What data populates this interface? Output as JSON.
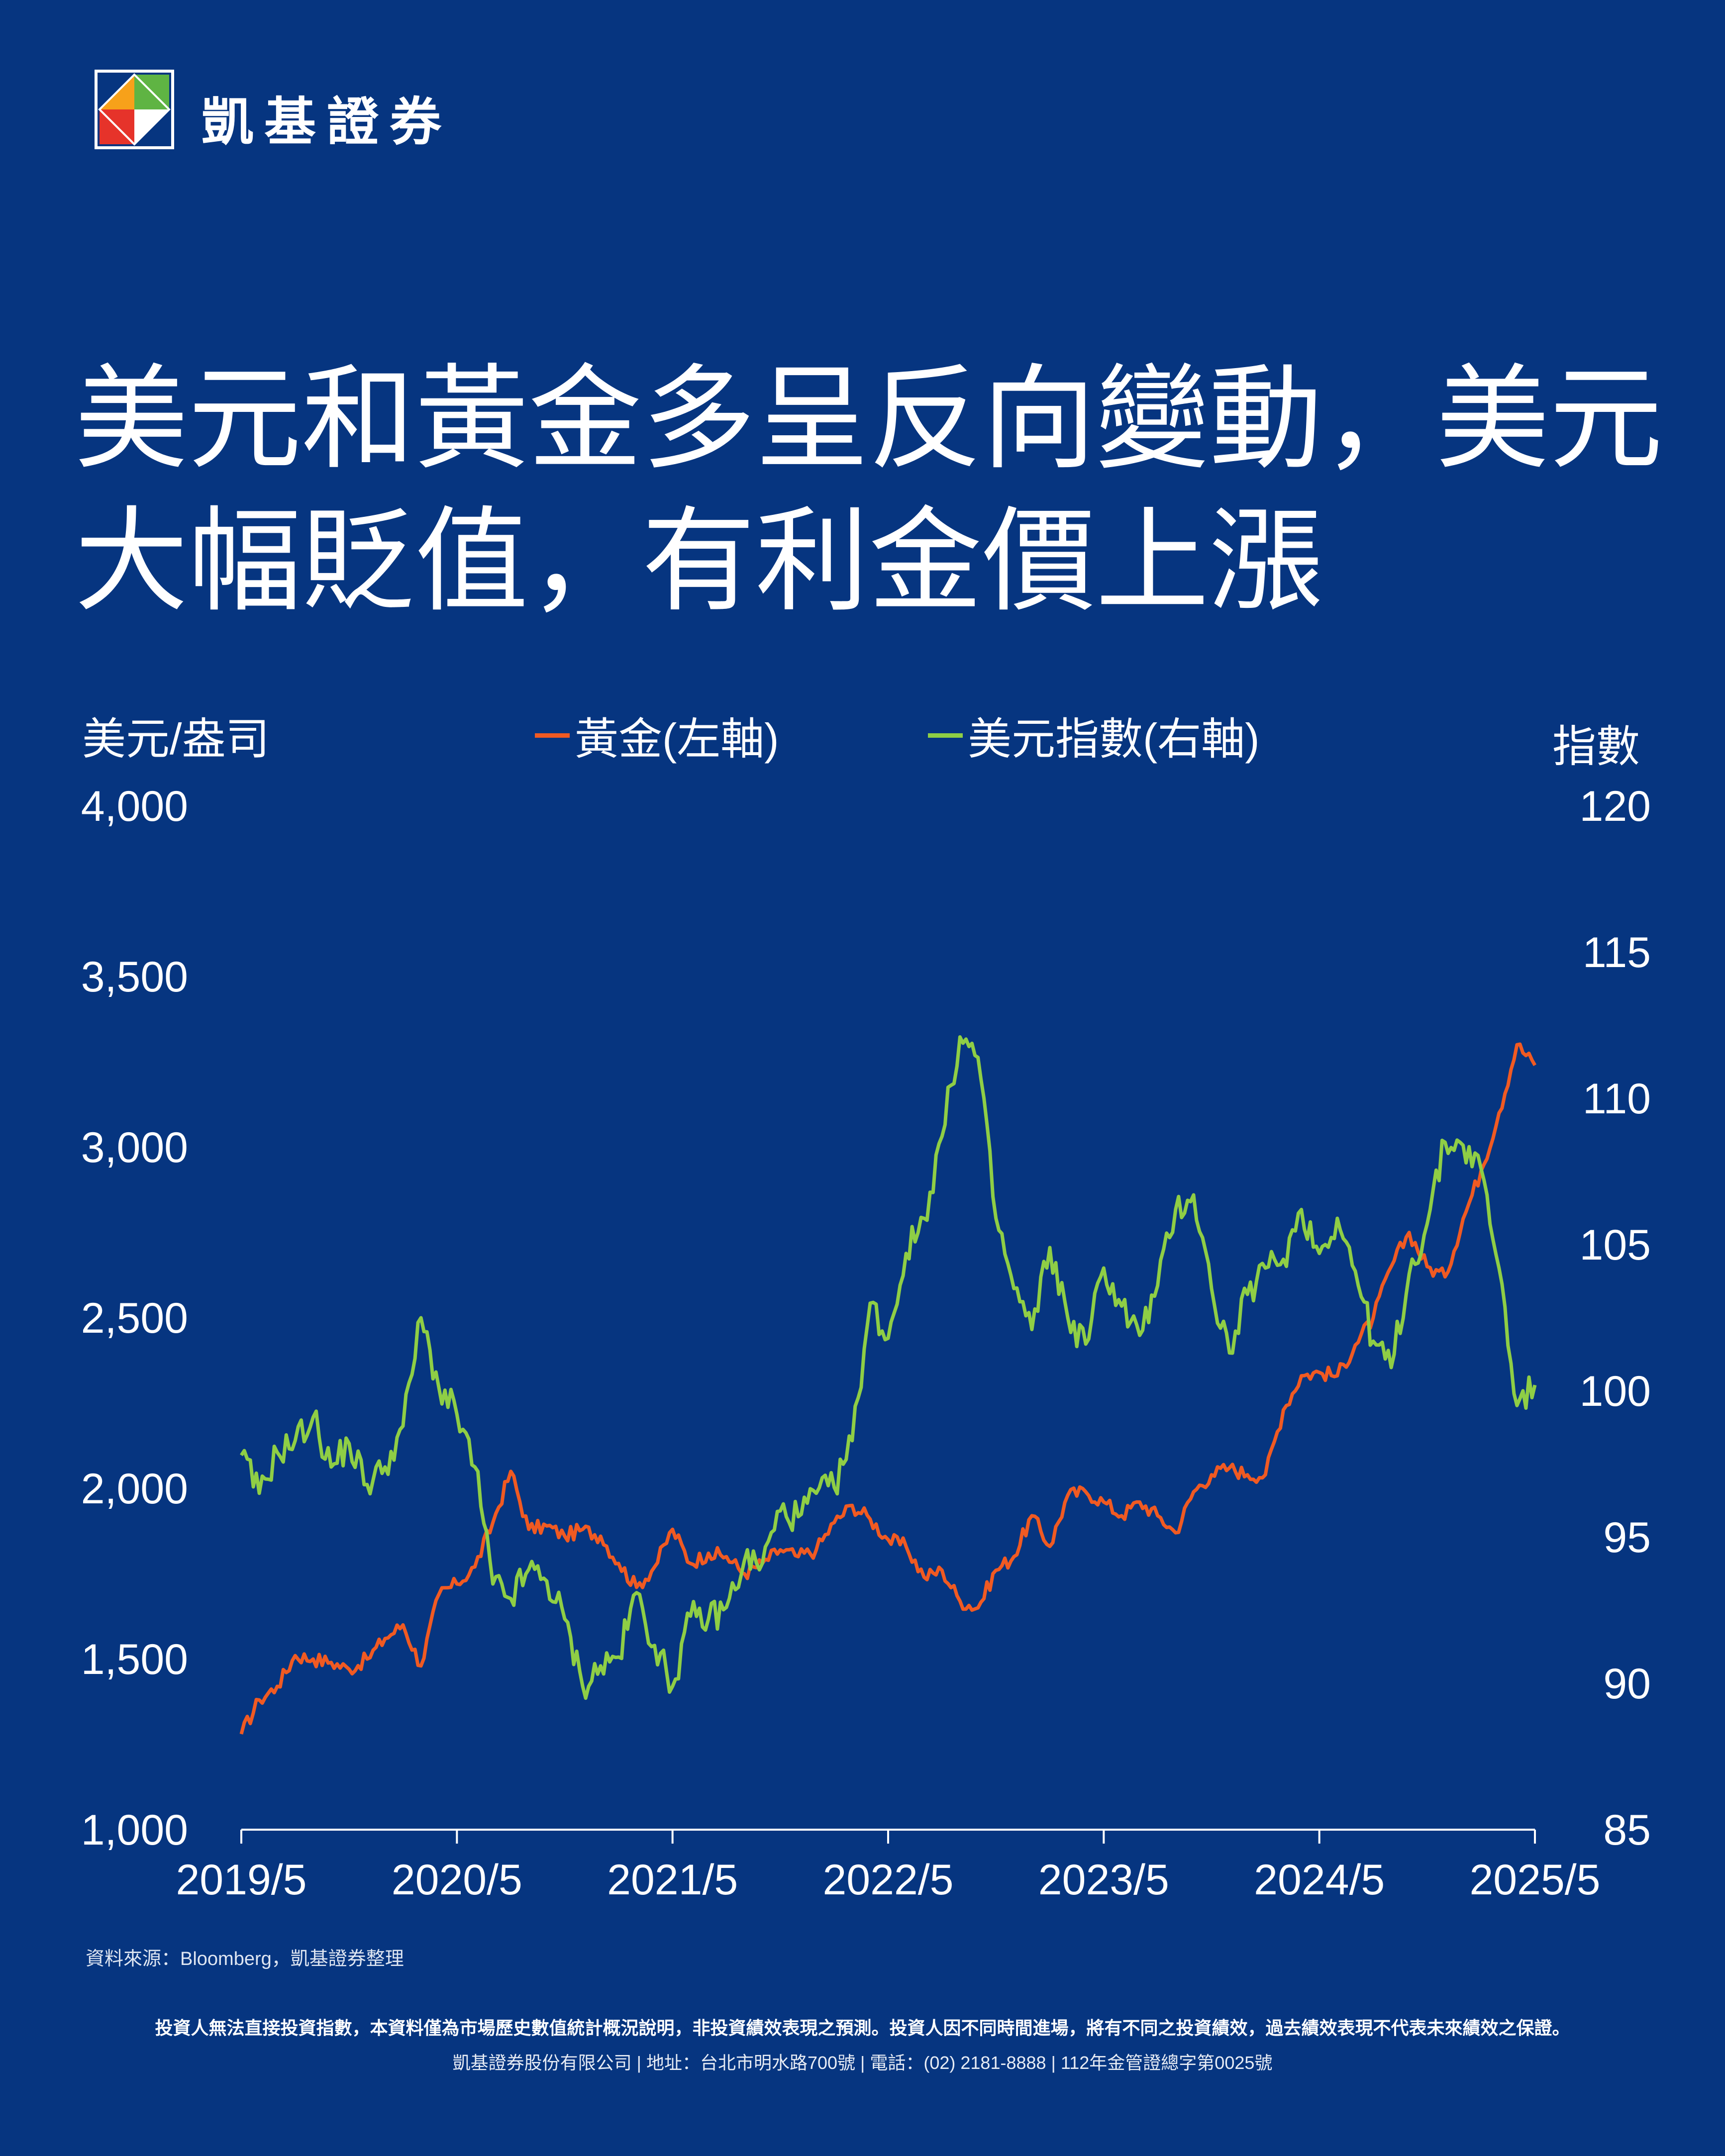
{
  "brand": {
    "name": "凱基證券"
  },
  "title": {
    "line1": "美元和黃金多呈反向變動，美元",
    "line2": "大幅貶值，有利金價上漲"
  },
  "chart_data": {
    "type": "line",
    "left_axis_label": "美元/盎司",
    "right_axis_label": "指數",
    "left_ylim": [
      1000,
      4000
    ],
    "right_ylim": [
      85,
      120
    ],
    "left_ticks": [
      "4,000",
      "3,500",
      "3,000",
      "2,500",
      "2,000",
      "1,500",
      "1,000"
    ],
    "right_ticks": [
      "120",
      "115",
      "110",
      "105",
      "100",
      "95",
      "90",
      "85"
    ],
    "x_ticks": [
      "2019/5",
      "2020/5",
      "2021/5",
      "2022/5",
      "2023/5",
      "2024/5",
      "2025/5"
    ],
    "series": [
      {
        "name": "黃金(左軸)",
        "axis": "left",
        "color": "#f05a22",
        "points": [
          [
            "2019/5",
            1280
          ],
          [
            "2019/6",
            1380
          ],
          [
            "2019/7",
            1420
          ],
          [
            "2019/8",
            1510
          ],
          [
            "2019/9",
            1500
          ],
          [
            "2019/10",
            1490
          ],
          [
            "2019/11",
            1470
          ],
          [
            "2019/12",
            1500
          ],
          [
            "2020/1",
            1560
          ],
          [
            "2020/2",
            1600
          ],
          [
            "2020/3",
            1480
          ],
          [
            "2020/4",
            1690
          ],
          [
            "2020/5",
            1720
          ],
          [
            "2020/6",
            1770
          ],
          [
            "2020/7",
            1900
          ],
          [
            "2020/8",
            2050
          ],
          [
            "2020/9",
            1880
          ],
          [
            "2020/10",
            1890
          ],
          [
            "2020/11",
            1860
          ],
          [
            "2020/12",
            1880
          ],
          [
            "2021/1",
            1860
          ],
          [
            "2021/2",
            1780
          ],
          [
            "2021/3",
            1710
          ],
          [
            "2021/4",
            1770
          ],
          [
            "2021/5",
            1880
          ],
          [
            "2021/6",
            1780
          ],
          [
            "2021/7",
            1810
          ],
          [
            "2021/8",
            1800
          ],
          [
            "2021/9",
            1750
          ],
          [
            "2021/10",
            1780
          ],
          [
            "2021/11",
            1820
          ],
          [
            "2021/12",
            1800
          ],
          [
            "2022/1",
            1820
          ],
          [
            "2022/2",
            1900
          ],
          [
            "2022/3",
            1950
          ],
          [
            "2022/4",
            1910
          ],
          [
            "2022/5",
            1850
          ],
          [
            "2022/6",
            1830
          ],
          [
            "2022/7",
            1740
          ],
          [
            "2022/8",
            1760
          ],
          [
            "2022/9",
            1670
          ],
          [
            "2022/10",
            1650
          ],
          [
            "2022/11",
            1760
          ],
          [
            "2022/12",
            1800
          ],
          [
            "2023/1",
            1920
          ],
          [
            "2023/2",
            1830
          ],
          [
            "2023/3",
            1980
          ],
          [
            "2023/4",
            1990
          ],
          [
            "2023/5",
            1960
          ],
          [
            "2023/6",
            1920
          ],
          [
            "2023/7",
            1960
          ],
          [
            "2023/8",
            1920
          ],
          [
            "2023/9",
            1870
          ],
          [
            "2023/10",
            1990
          ],
          [
            "2023/11",
            2040
          ],
          [
            "2023/12",
            2060
          ],
          [
            "2024/1",
            2040
          ],
          [
            "2024/2",
            2040
          ],
          [
            "2024/3",
            2230
          ],
          [
            "2024/4",
            2330
          ],
          [
            "2024/5",
            2340
          ],
          [
            "2024/6",
            2330
          ],
          [
            "2024/7",
            2420
          ],
          [
            "2024/8",
            2500
          ],
          [
            "2024/9",
            2650
          ],
          [
            "2024/10",
            2750
          ],
          [
            "2024/11",
            2650
          ],
          [
            "2024/12",
            2620
          ],
          [
            "2025/1",
            2790
          ],
          [
            "2025/2",
            2930
          ],
          [
            "2025/3",
            3100
          ],
          [
            "2025/4",
            3300
          ],
          [
            "2025/5",
            3240
          ]
        ]
      },
      {
        "name": "美元指數(右軸)",
        "axis": "right",
        "color": "#8fce45",
        "points": [
          [
            "2019/5",
            97.8
          ],
          [
            "2019/6",
            96.5
          ],
          [
            "2019/7",
            97.9
          ],
          [
            "2019/8",
            98.3
          ],
          [
            "2019/9",
            99.1
          ],
          [
            "2019/10",
            97.4
          ],
          [
            "2019/11",
            98.2
          ],
          [
            "2019/12",
            96.8
          ],
          [
            "2020/1",
            97.4
          ],
          [
            "2020/2",
            98.8
          ],
          [
            "2020/3",
            102.5
          ],
          [
            "2020/4",
            100.1
          ],
          [
            "2020/5",
            99.2
          ],
          [
            "2020/6",
            97.4
          ],
          [
            "2020/7",
            93.4
          ],
          [
            "2020/8",
            92.9
          ],
          [
            "2020/9",
            93.9
          ],
          [
            "2020/10",
            93.5
          ],
          [
            "2020/11",
            92.2
          ],
          [
            "2020/12",
            89.9
          ],
          [
            "2021/1",
            90.6
          ],
          [
            "2021/2",
            90.9
          ],
          [
            "2021/3",
            93.1
          ],
          [
            "2021/4",
            91.3
          ],
          [
            "2021/5",
            89.9
          ],
          [
            "2021/6",
            92.3
          ],
          [
            "2021/7",
            92.2
          ],
          [
            "2021/8",
            92.6
          ],
          [
            "2021/9",
            94.2
          ],
          [
            "2021/10",
            94.1
          ],
          [
            "2021/11",
            95.9
          ],
          [
            "2021/12",
            95.7
          ],
          [
            "2022/1",
            96.5
          ],
          [
            "2022/2",
            96.7
          ],
          [
            "2022/3",
            98.3
          ],
          [
            "2022/4",
            103.0
          ],
          [
            "2022/5",
            101.8
          ],
          [
            "2022/6",
            104.7
          ],
          [
            "2022/7",
            105.9
          ],
          [
            "2022/8",
            108.7
          ],
          [
            "2022/9",
            112.1
          ],
          [
            "2022/10",
            111.4
          ],
          [
            "2022/11",
            105.9
          ],
          [
            "2022/12",
            103.5
          ],
          [
            "2023/1",
            102.1
          ],
          [
            "2023/2",
            104.9
          ],
          [
            "2023/3",
            102.5
          ],
          [
            "2023/4",
            101.6
          ],
          [
            "2023/5",
            104.2
          ],
          [
            "2023/6",
            102.9
          ],
          [
            "2023/7",
            101.9
          ],
          [
            "2023/8",
            103.6
          ],
          [
            "2023/9",
            106.2
          ],
          [
            "2023/10",
            106.7
          ],
          [
            "2023/11",
            103.5
          ],
          [
            "2023/12",
            101.3
          ],
          [
            "2024/1",
            103.3
          ],
          [
            "2024/2",
            104.2
          ],
          [
            "2024/3",
            104.5
          ],
          [
            "2024/4",
            106.2
          ],
          [
            "2024/5",
            104.7
          ],
          [
            "2024/6",
            105.9
          ],
          [
            "2024/7",
            104.1
          ],
          [
            "2024/8",
            101.7
          ],
          [
            "2024/9",
            100.8
          ],
          [
            "2024/10",
            104.0
          ],
          [
            "2024/11",
            105.7
          ],
          [
            "2024/12",
            108.5
          ],
          [
            "2025/1",
            108.4
          ],
          [
            "2025/2",
            107.6
          ],
          [
            "2025/3",
            104.2
          ],
          [
            "2025/4",
            99.5
          ],
          [
            "2025/5",
            100.2
          ]
        ]
      }
    ]
  },
  "source": "資料來源：Bloomberg，凱基證券整理",
  "disclaimer": "投資人無法直接投資指數，本資料僅為市場歷史數值統計概況說明，非投資績效表現之預測。投資人因不同時間進場，將有不同之投資績效，過去績效表現不代表未來績效之保證。",
  "address": "凱基證券股份有限公司 | 地址：台北市明水路700號 | 電話：(02) 2181-8888 | 112年金管證總字第0025號",
  "colors": {
    "background": "#063580",
    "gold": "#f05a22",
    "usd": "#8fce45",
    "text": "#ffffff"
  }
}
